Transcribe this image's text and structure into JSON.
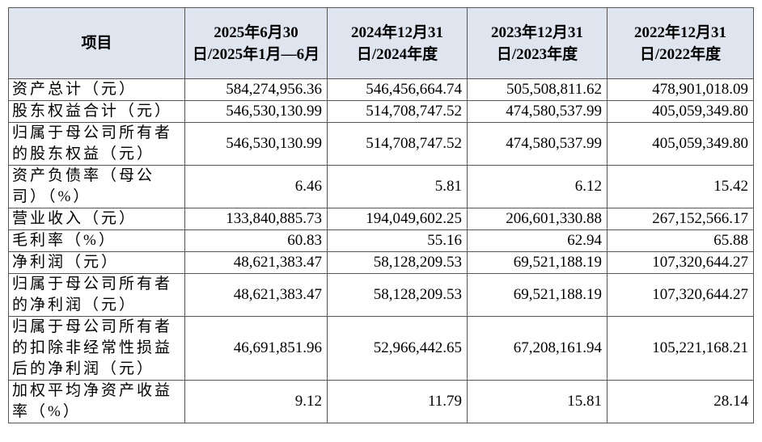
{
  "table": {
    "header": [
      "项目",
      "2025年6月30日/2025年1月—6月",
      "2024年12月31日/2024年度",
      "2023年12月31日/2023年度",
      "2022年12月31日/2022年度"
    ],
    "rows": [
      [
        "资产总计（元）",
        "584,274,956.36",
        "546,456,664.74",
        "505,508,811.62",
        "478,901,018.09"
      ],
      [
        "股东权益合计（元）",
        "546,530,130.99",
        "514,708,747.52",
        "474,580,537.99",
        "405,059,349.80"
      ],
      [
        "归属于母公司所有者的股东权益（元）",
        "546,530,130.99",
        "514,708,747.52",
        "474,580,537.99",
        "405,059,349.80"
      ],
      [
        "资产负债率（母公司）（%）",
        "6.46",
        "5.81",
        "6.12",
        "15.42"
      ],
      [
        "营业收入（元）",
        "133,840,885.73",
        "194,049,602.25",
        "206,601,330.88",
        "267,152,566.17"
      ],
      [
        "毛利率（%）",
        "60.83",
        "55.16",
        "62.94",
        "65.88"
      ],
      [
        "净利润（元）",
        "48,621,383.47",
        "58,128,209.53",
        "69,521,188.19",
        "107,320,644.27"
      ],
      [
        "归属于母公司所有者的净利润（元）",
        "48,621,383.47",
        "58,128,209.53",
        "69,521,188.19",
        "107,320,644.27"
      ],
      [
        "归属于母公司所有者的扣除非经常性损益后的净利润（元）",
        "46,691,851.96",
        "52,966,442.65",
        "67,208,161.94",
        "105,221,168.21"
      ],
      [
        "加权平均净资产收益率（%）",
        "9.12",
        "11.79",
        "15.81",
        "28.14"
      ]
    ]
  }
}
